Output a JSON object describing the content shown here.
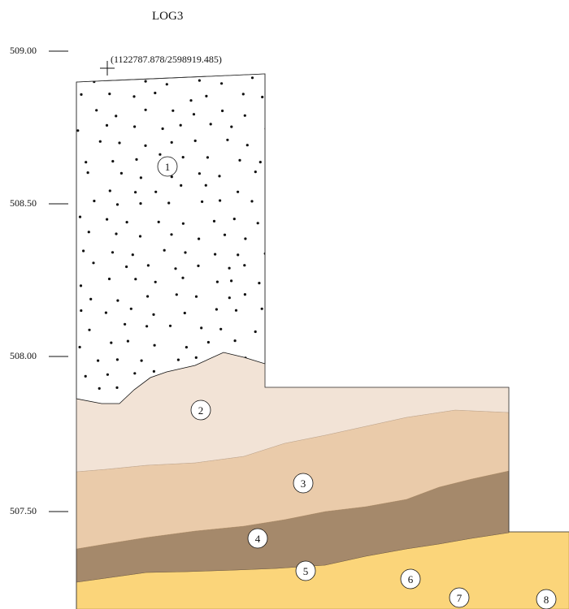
{
  "title": "LOG3",
  "coordinate_label": "(1122787.878/2598919.485)",
  "elevation_labels": [
    "509.00",
    "508.50",
    "508.00",
    "507.50"
  ],
  "layers": [
    {
      "number": "1",
      "color": "#ffffff",
      "pattern": "gravel-dots"
    },
    {
      "number": "2",
      "color": "#f2e3d6"
    },
    {
      "number": "3",
      "color": "#eacbaa"
    },
    {
      "number": "4",
      "color": "#a5896b"
    },
    {
      "number": "5",
      "color": "#fbd57a"
    },
    {
      "number": "6",
      "color": "#9c9c9c"
    },
    {
      "number": "7",
      "color": "#a9d9ef"
    },
    {
      "number": "8",
      "color": "#5a5a5a"
    }
  ]
}
